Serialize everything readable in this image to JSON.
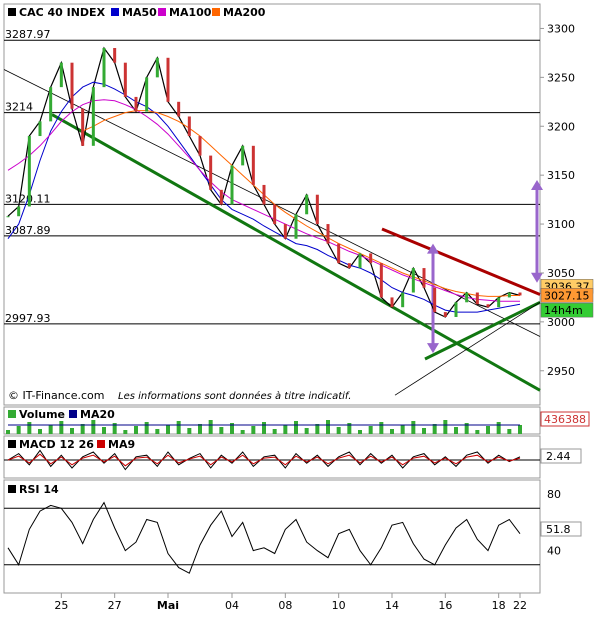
{
  "chart_data": [
    {
      "type": "line",
      "title": "CAC 40 INDEX",
      "legend": [
        {
          "name": "CAC 40 INDEX",
          "color": "#000000"
        },
        {
          "name": "MA50",
          "color": "#0000cc"
        },
        {
          "name": "MA100",
          "color": "#cc00cc"
        },
        {
          "name": "MA200",
          "color": "#ff6600"
        }
      ],
      "ylim": [
        2915,
        3325
      ],
      "yticks": [
        "3300",
        "3250",
        "3200",
        "3150",
        "3100",
        "3050",
        "3000",
        "2950"
      ],
      "ytick_values": [
        3300,
        3250,
        3200,
        3150,
        3100,
        3050,
        3000,
        2950
      ],
      "hlines": [
        {
          "label": "3287.97",
          "value": 3287.97
        },
        {
          "label": "3214",
          "value": 3214
        },
        {
          "label": "3120.11",
          "value": 3120.11
        },
        {
          "label": "3087.89",
          "value": 3087.89
        },
        {
          "label": "2997.93",
          "value": 2997.93
        }
      ],
      "price_tags": [
        {
          "label": "3036.37",
          "value": 3036.37,
          "color": "#ffcc66"
        },
        {
          "label": "3027.15",
          "value": 3027.15,
          "color": "#ff9933"
        },
        {
          "label": "14h4m",
          "value": 3012,
          "color": "#33cc33"
        }
      ],
      "xticks": [
        "25",
        "27",
        "Mai",
        "04",
        "08",
        "10",
        "14",
        "16",
        "18",
        "22"
      ],
      "footer": "© IT-Finance.com",
      "disclaimer": "Les informations sont données à titre indicatif.",
      "series": [
        {
          "name": "CAC 40 INDEX",
          "color": "#000000",
          "values": [
            3108,
            3118,
            3190,
            3205,
            3240,
            3265,
            3218,
            3180,
            3240,
            3280,
            3265,
            3230,
            3215,
            3250,
            3270,
            3225,
            3210,
            3190,
            3170,
            3135,
            3120,
            3160,
            3180,
            3140,
            3120,
            3100,
            3085,
            3110,
            3130,
            3100,
            3080,
            3060,
            3055,
            3070,
            3060,
            3025,
            3015,
            3030,
            3055,
            3035,
            3010,
            3005,
            3020,
            3030,
            3018,
            3015,
            3025,
            3030,
            3027
          ]
        },
        {
          "name": "MA50",
          "color": "#0000cc",
          "values": [
            3085,
            3100,
            3130,
            3165,
            3195,
            3215,
            3230,
            3240,
            3245,
            3243,
            3238,
            3232,
            3225,
            3220,
            3212,
            3200,
            3185,
            3170,
            3155,
            3140,
            3125,
            3115,
            3110,
            3105,
            3098,
            3092,
            3086,
            3080,
            3078,
            3074,
            3068,
            3063,
            3058,
            3055,
            3050,
            3043,
            3035,
            3030,
            3027,
            3023,
            3017,
            3012,
            3010,
            3010,
            3010,
            3012,
            3014,
            3016,
            3018
          ]
        },
        {
          "name": "MA100",
          "color": "#cc00cc",
          "values": [
            3155,
            3162,
            3170,
            3180,
            3192,
            3205,
            3215,
            3222,
            3226,
            3227,
            3226,
            3222,
            3217,
            3210,
            3202,
            3192,
            3180,
            3168,
            3155,
            3143,
            3133,
            3125,
            3120,
            3115,
            3110,
            3105,
            3100,
            3095,
            3090,
            3086,
            3082,
            3077,
            3072,
            3068,
            3063,
            3058,
            3053,
            3048,
            3044,
            3040,
            3036,
            3032,
            3028,
            3025,
            3023,
            3022,
            3021,
            3021,
            3021
          ]
        },
        {
          "name": "MA200",
          "color": "#ff6600",
          "values": [
            null,
            null,
            null,
            null,
            null,
            null,
            null,
            3195,
            3200,
            3206,
            3210,
            3214,
            3216,
            3216,
            3214,
            3210,
            3205,
            3198,
            3190,
            3180,
            3170,
            3160,
            3150,
            3140,
            3130,
            3120,
            3112,
            3105,
            3098,
            3092,
            3086,
            3080,
            3075,
            3070,
            3065,
            3060,
            3055,
            3050,
            3046,
            3042,
            3038,
            3034,
            3031,
            3029,
            3027,
            3026,
            3026,
            3027,
            3027
          ]
        }
      ]
    },
    {
      "type": "bar",
      "title": "Volume",
      "legend": [
        {
          "name": "Volume",
          "color": "#33aa33"
        },
        {
          "name": "MA20",
          "color": "#000088"
        }
      ],
      "last_value": "436388"
    },
    {
      "type": "line",
      "title": "MACD 12 26",
      "legend": [
        {
          "name": "MACD 12 26",
          "color": "#000000"
        },
        {
          "name": "MA9",
          "color": "#cc0000"
        }
      ],
      "last_value": "2.44",
      "values": [
        0,
        4,
        -3,
        6,
        -4,
        3,
        -5,
        2,
        5,
        -2,
        4,
        -6,
        2,
        3,
        -4,
        5,
        -3,
        1,
        4,
        -5,
        3,
        -2,
        5,
        -4,
        2,
        3,
        -5,
        4,
        -2,
        3,
        -4,
        2,
        5,
        -3,
        4,
        -2,
        3,
        -5,
        2,
        4,
        -3,
        2,
        -4,
        3,
        5,
        -2,
        3,
        -1,
        2
      ]
    },
    {
      "type": "line",
      "title": "RSI 14",
      "legend": [
        {
          "name": "RSI 14",
          "color": "#000000"
        }
      ],
      "last_value": "51.8",
      "ylim": [
        10,
        90
      ],
      "yticks": [
        "80",
        "40"
      ],
      "ytick_values": [
        80,
        40
      ],
      "hlines": [
        70,
        30
      ],
      "values": [
        42,
        30,
        55,
        68,
        72,
        70,
        60,
        45,
        62,
        74,
        56,
        40,
        46,
        62,
        60,
        38,
        28,
        24,
        44,
        58,
        68,
        50,
        60,
        40,
        42,
        38,
        55,
        62,
        46,
        40,
        35,
        52,
        55,
        40,
        30,
        42,
        58,
        60,
        45,
        34,
        30,
        44,
        56,
        62,
        48,
        40,
        58,
        62,
        52
      ]
    }
  ]
}
